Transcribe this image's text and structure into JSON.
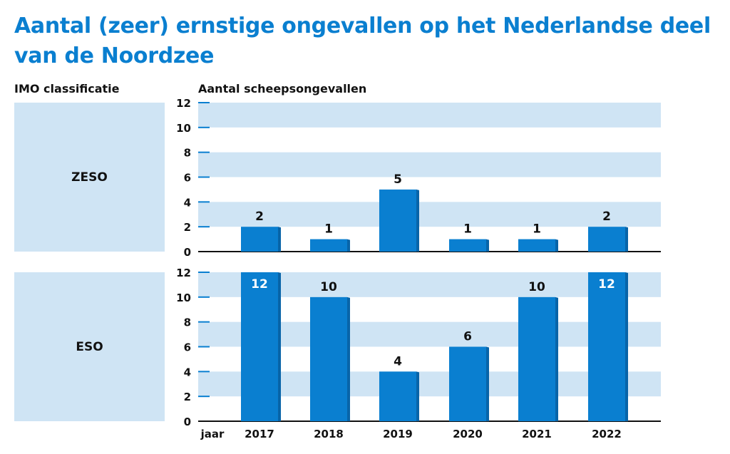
{
  "title": "Aantal (zeer) ernstige ongevallen op het Nederlandse deel van de Noordzee",
  "row_header": "IMO classificatie",
  "axis_header": "Aantal scheepsongevallen",
  "x_axis_word": "jaar",
  "colors": {
    "title": "#0a7fd0",
    "bar": "#0a7fd0",
    "bar_side": "#0864a8",
    "band": "#cfe4f4",
    "axis": "#0a7fd0"
  },
  "chart_data": [
    {
      "type": "bar",
      "panel": "ZESO",
      "categories": [
        "2017",
        "2018",
        "2019",
        "2020",
        "2021",
        "2022"
      ],
      "values": [
        2,
        1,
        5,
        1,
        1,
        2
      ],
      "ylim": [
        0,
        12
      ],
      "yticks": [
        "0",
        "2",
        "4",
        "6",
        "8",
        "10",
        "12"
      ],
      "ylabel": "Aantal scheepsongevallen",
      "xlabel": "jaar",
      "grid": "alternating horizontal bands"
    },
    {
      "type": "bar",
      "panel": "ESO",
      "categories": [
        "2017",
        "2018",
        "2019",
        "2020",
        "2021",
        "2022"
      ],
      "values": [
        12,
        10,
        4,
        6,
        10,
        12
      ],
      "ylim": [
        0,
        12
      ],
      "yticks": [
        "0",
        "2",
        "4",
        "6",
        "8",
        "10",
        "12"
      ],
      "ylabel": "Aantal scheepsongevallen",
      "xlabel": "jaar",
      "grid": "alternating horizontal bands"
    }
  ]
}
